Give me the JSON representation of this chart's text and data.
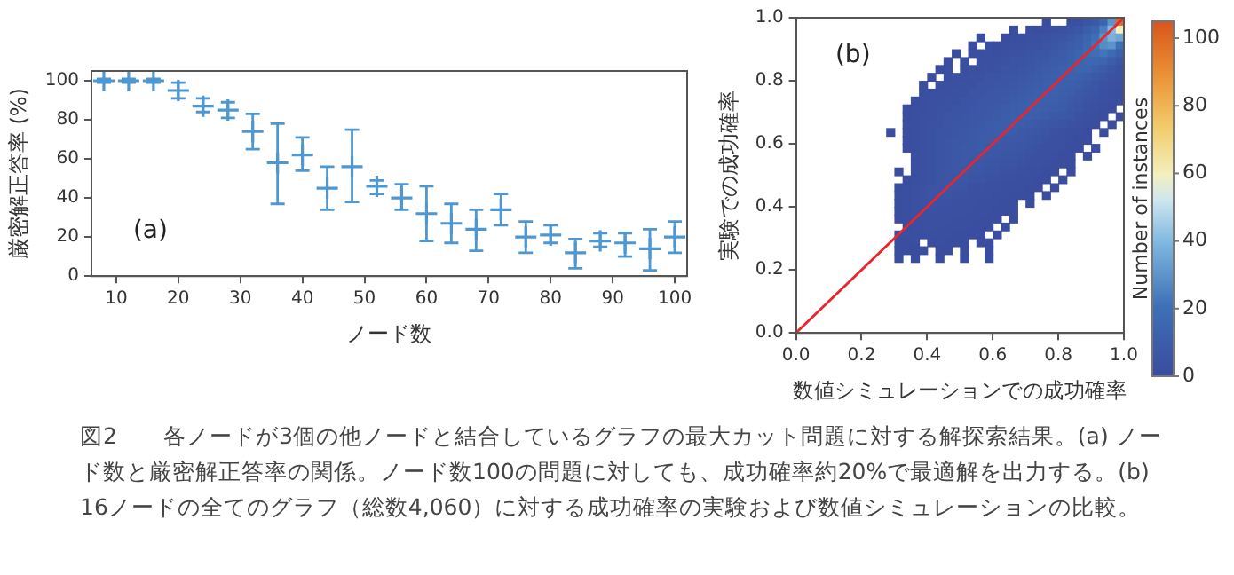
{
  "chart_data": [
    {
      "type": "scatter",
      "marker": "cross",
      "xlabel": "ノード数",
      "ylabel": "厳密解正答率 (%)",
      "series": [
        {
          "color": "#4f97d0",
          "x": [
            8,
            12,
            16,
            20,
            24,
            28,
            32,
            36,
            40,
            44,
            48,
            52,
            56,
            60,
            64,
            68,
            72,
            76,
            80,
            84,
            88,
            92,
            96,
            100
          ],
          "values": [
            100,
            100,
            100,
            95,
            87,
            85,
            74,
            58,
            62,
            45,
            56,
            46,
            40,
            32,
            27,
            24,
            34,
            20,
            21,
            12,
            18,
            17,
            14,
            20
          ],
          "errors": [
            1,
            1,
            1,
            [
              91,
              99
            ],
            [
              84,
              91
            ],
            [
              81,
              89
            ],
            [
              65,
              83
            ],
            [
              37,
              78
            ],
            [
              54,
              71
            ],
            [
              34,
              56
            ],
            [
              38,
              75
            ],
            [
              42,
              49
            ],
            [
              34,
              47
            ],
            [
              18,
              46
            ],
            [
              17,
              37
            ],
            [
              13,
              34
            ],
            [
              26,
              42
            ],
            [
              12,
              28
            ],
            [
              17,
              26
            ],
            [
              4,
              19
            ],
            [
              15,
              22
            ],
            [
              10,
              22
            ],
            [
              3,
              24
            ],
            [
              12,
              28
            ]
          ]
        }
      ],
      "xlim": [
        6,
        102
      ],
      "xticks": [
        10,
        20,
        30,
        40,
        50,
        60,
        70,
        80,
        90,
        100
      ],
      "ylim": [
        0,
        105
      ],
      "yticks": [
        0,
        20,
        40,
        60,
        80,
        100
      ],
      "annotations": [
        "(a)",
        "図2　　各ノードが3個の他ノードと結合しているグラフの最大カット問題に対する解探索結果。(a) ノード数と厳密解正答率の関係。ノード数100の問題に対しても、成功確率約20%で最適解を出力する。(b) 16ノードの全てのグラフ（総数4,060）に対する成功確率の実験および数値シミュレーションの比較。"
      ]
    },
    {
      "type": "heatmap",
      "xlabel": "数値シミュレーションでの成功確率",
      "ylabel": "実験での成功確率",
      "clabel": "Number of instances",
      "xlim": [
        0,
        1
      ],
      "ylim": [
        0,
        1
      ],
      "xticks": [
        {
          "value": 0,
          "label": "0.0"
        },
        0.2,
        0.4,
        0.6,
        0.8,
        {
          "value": 1,
          "label": "1.0"
        }
      ],
      "yticks": [
        {
          "value": 0,
          "label": "0.0"
        },
        0.2,
        0.4,
        0.6,
        0.8,
        {
          "value": 1,
          "label": "1.0"
        }
      ],
      "clim": [
        0,
        105
      ],
      "cticks": [
        0,
        20,
        40,
        60,
        80,
        100
      ],
      "x": [
        0.2875,
        0.3125,
        0.3375,
        0.3625,
        0.3875,
        0.4125,
        0.4375,
        0.4625,
        0.4875,
        0.5125,
        0.5375,
        0.5625,
        0.5875,
        0.6125,
        0.6375,
        0.6625,
        0.6875,
        0.7125,
        0.7375,
        0.7625,
        0.7875,
        0.8125,
        0.8375,
        0.8625,
        0.8875,
        0.9125,
        0.9375,
        0.9625,
        0.9875
      ],
      "y": [
        0.9875,
        0.9625,
        0.9375,
        0.9125,
        0.8875,
        0.8625,
        0.8375,
        0.8125,
        0.7875,
        0.7625,
        0.7375,
        0.7125,
        0.6875,
        0.6625,
        0.6375,
        0.6125,
        0.5875,
        0.5625,
        0.5375,
        0.5125,
        0.4875,
        0.4625,
        0.4375,
        0.4125,
        0.3875,
        0.3625,
        0.3375,
        0.3125,
        0.2875,
        0.2625,
        0.2375
      ],
      "cells": [
        [
          null,
          null,
          null,
          null,
          null,
          null,
          null,
          null,
          null,
          null,
          null,
          null,
          null,
          null,
          null,
          null,
          null,
          null,
          null,
          1,
          null,
          null,
          2,
          3,
          5,
          8,
          15,
          30,
          100
        ],
        [
          null,
          null,
          null,
          null,
          null,
          null,
          null,
          null,
          null,
          null,
          null,
          null,
          null,
          null,
          null,
          1,
          null,
          2,
          1,
          2,
          3,
          3,
          5,
          6,
          10,
          14,
          25,
          40,
          60
        ],
        [
          null,
          null,
          null,
          null,
          null,
          null,
          null,
          null,
          null,
          null,
          null,
          1,
          null,
          null,
          1,
          2,
          2,
          3,
          3,
          4,
          5,
          6,
          8,
          10,
          14,
          20,
          30,
          38,
          35
        ],
        [
          null,
          null,
          null,
          null,
          null,
          null,
          null,
          null,
          null,
          null,
          1,
          null,
          2,
          1,
          2,
          3,
          3,
          4,
          4,
          5,
          6,
          8,
          10,
          12,
          16,
          22,
          28,
          30,
          20
        ],
        [
          null,
          null,
          null,
          null,
          null,
          null,
          null,
          null,
          1,
          null,
          2,
          2,
          3,
          2,
          3,
          4,
          4,
          5,
          6,
          6,
          8,
          9,
          12,
          14,
          18,
          20,
          22,
          18,
          12
        ],
        [
          null,
          null,
          null,
          null,
          null,
          null,
          null,
          1,
          null,
          2,
          null,
          3,
          3,
          4,
          4,
          5,
          5,
          6,
          7,
          8,
          9,
          10,
          12,
          14,
          16,
          16,
          14,
          10,
          6
        ],
        [
          null,
          null,
          null,
          null,
          null,
          null,
          1,
          2,
          null,
          2,
          3,
          3,
          4,
          4,
          5,
          5,
          6,
          7,
          8,
          9,
          10,
          12,
          13,
          14,
          14,
          12,
          9,
          6,
          4
        ],
        [
          null,
          null,
          null,
          null,
          null,
          1,
          null,
          2,
          3,
          3,
          4,
          4,
          5,
          5,
          6,
          6,
          7,
          8,
          9,
          10,
          11,
          12,
          13,
          12,
          10,
          8,
          6,
          4,
          3
        ],
        [
          null,
          null,
          null,
          null,
          1,
          null,
          2,
          3,
          3,
          4,
          4,
          5,
          5,
          6,
          6,
          7,
          8,
          9,
          10,
          11,
          12,
          12,
          11,
          10,
          8,
          6,
          4,
          3,
          2
        ],
        [
          null,
          null,
          null,
          null,
          2,
          2,
          3,
          3,
          4,
          4,
          5,
          5,
          6,
          7,
          7,
          8,
          9,
          10,
          11,
          12,
          12,
          11,
          10,
          8,
          6,
          5,
          3,
          2,
          1
        ],
        [
          null,
          null,
          null,
          1,
          2,
          3,
          3,
          4,
          4,
          5,
          5,
          6,
          7,
          7,
          8,
          9,
          10,
          11,
          12,
          12,
          11,
          10,
          8,
          7,
          5,
          4,
          3,
          2,
          1
        ],
        [
          null,
          null,
          1,
          2,
          2,
          3,
          4,
          4,
          5,
          5,
          6,
          7,
          7,
          8,
          9,
          10,
          11,
          12,
          12,
          11,
          10,
          9,
          7,
          6,
          4,
          3,
          2,
          1,
          null
        ],
        [
          null,
          null,
          1,
          2,
          3,
          3,
          4,
          5,
          5,
          6,
          7,
          7,
          8,
          9,
          10,
          11,
          11,
          11,
          10,
          9,
          8,
          7,
          6,
          4,
          3,
          2,
          1,
          null,
          1
        ],
        [
          null,
          null,
          2,
          2,
          3,
          4,
          4,
          5,
          6,
          6,
          7,
          8,
          9,
          10,
          10,
          11,
          10,
          9,
          8,
          7,
          6,
          5,
          4,
          3,
          2,
          1,
          null,
          1,
          null
        ],
        [
          1,
          null,
          1,
          2,
          3,
          4,
          5,
          5,
          6,
          7,
          8,
          9,
          9,
          10,
          10,
          9,
          8,
          7,
          6,
          5,
          4,
          3,
          2,
          2,
          1,
          null,
          1,
          null,
          null
        ],
        [
          null,
          null,
          1,
          2,
          3,
          4,
          5,
          6,
          7,
          7,
          8,
          9,
          9,
          9,
          8,
          8,
          7,
          6,
          5,
          4,
          3,
          3,
          2,
          1,
          1,
          null,
          null,
          null,
          null
        ],
        [
          null,
          null,
          1,
          2,
          3,
          4,
          5,
          6,
          7,
          8,
          8,
          9,
          8,
          8,
          7,
          7,
          6,
          5,
          4,
          3,
          3,
          2,
          1,
          1,
          null,
          1,
          null,
          null,
          null
        ],
        [
          null,
          null,
          null,
          2,
          3,
          4,
          5,
          6,
          7,
          8,
          8,
          8,
          7,
          7,
          6,
          6,
          5,
          4,
          3,
          3,
          2,
          1,
          1,
          null,
          1,
          null,
          null,
          null,
          null
        ],
        [
          null,
          null,
          null,
          2,
          3,
          4,
          5,
          6,
          7,
          8,
          7,
          7,
          6,
          6,
          5,
          5,
          4,
          3,
          3,
          2,
          1,
          1,
          1,
          null,
          null,
          null,
          null,
          null,
          null
        ],
        [
          null,
          1,
          null,
          2,
          3,
          4,
          5,
          6,
          7,
          7,
          6,
          6,
          5,
          5,
          4,
          4,
          3,
          2,
          2,
          1,
          1,
          null,
          1,
          null,
          null,
          null,
          null,
          null,
          null
        ],
        [
          null,
          null,
          1,
          2,
          3,
          4,
          5,
          6,
          6,
          6,
          5,
          5,
          4,
          4,
          3,
          3,
          2,
          2,
          1,
          1,
          null,
          1,
          null,
          null,
          null,
          null,
          null,
          null,
          null
        ],
        [
          null,
          1,
          2,
          3,
          4,
          5,
          5,
          6,
          5,
          5,
          4,
          4,
          3,
          3,
          2,
          2,
          2,
          1,
          1,
          null,
          1,
          null,
          null,
          null,
          null,
          null,
          null,
          null,
          null
        ],
        [
          null,
          2,
          2,
          3,
          4,
          5,
          5,
          5,
          4,
          4,
          3,
          3,
          3,
          2,
          2,
          1,
          1,
          1,
          null,
          1,
          null,
          null,
          null,
          null,
          null,
          null,
          null,
          null,
          null
        ],
        [
          null,
          1,
          2,
          3,
          4,
          4,
          4,
          4,
          3,
          3,
          3,
          2,
          2,
          2,
          1,
          1,
          null,
          1,
          null,
          null,
          null,
          null,
          null,
          null,
          null,
          null,
          null,
          null,
          null
        ],
        [
          null,
          1,
          2,
          3,
          3,
          4,
          4,
          3,
          3,
          3,
          2,
          2,
          2,
          1,
          1,
          1,
          null,
          null,
          null,
          null,
          null,
          null,
          null,
          null,
          null,
          null,
          null,
          null,
          null
        ],
        [
          null,
          1,
          2,
          2,
          3,
          3,
          3,
          3,
          2,
          2,
          2,
          1,
          1,
          1,
          null,
          1,
          null,
          null,
          null,
          null,
          null,
          null,
          null,
          null,
          null,
          null,
          null,
          null,
          null
        ],
        [
          null,
          null,
          1,
          2,
          2,
          3,
          2,
          2,
          2,
          2,
          1,
          1,
          1,
          null,
          1,
          null,
          null,
          null,
          null,
          null,
          null,
          null,
          null,
          null,
          null,
          null,
          null,
          null,
          null
        ],
        [
          null,
          1,
          2,
          2,
          2,
          2,
          2,
          2,
          1,
          1,
          1,
          1,
          null,
          1,
          null,
          null,
          null,
          null,
          null,
          null,
          null,
          null,
          null,
          null,
          null,
          null,
          null,
          null,
          null
        ],
        [
          null,
          1,
          1,
          2,
          null,
          1,
          2,
          1,
          1,
          1,
          null,
          1,
          1,
          null,
          null,
          null,
          null,
          null,
          null,
          null,
          null,
          null,
          null,
          null,
          null,
          null,
          null,
          null,
          null
        ],
        [
          null,
          1,
          1,
          1,
          1,
          null,
          1,
          1,
          null,
          1,
          null,
          null,
          1,
          null,
          null,
          null,
          null,
          null,
          null,
          null,
          null,
          null,
          null,
          null,
          null,
          null,
          null,
          null,
          null
        ],
        [
          null,
          1,
          null,
          1,
          null,
          null,
          1,
          null,
          null,
          1,
          null,
          null,
          1,
          null,
          null,
          null,
          null,
          null,
          null,
          null,
          null,
          null,
          null,
          null,
          null,
          null,
          null,
          null,
          null
        ]
      ],
      "series": [
        {
          "type": "line",
          "x": [
            0,
            1
          ],
          "values": [
            0,
            1
          ],
          "color": "#e8262b"
        }
      ],
      "annotations": [
        "(b)"
      ]
    }
  ]
}
